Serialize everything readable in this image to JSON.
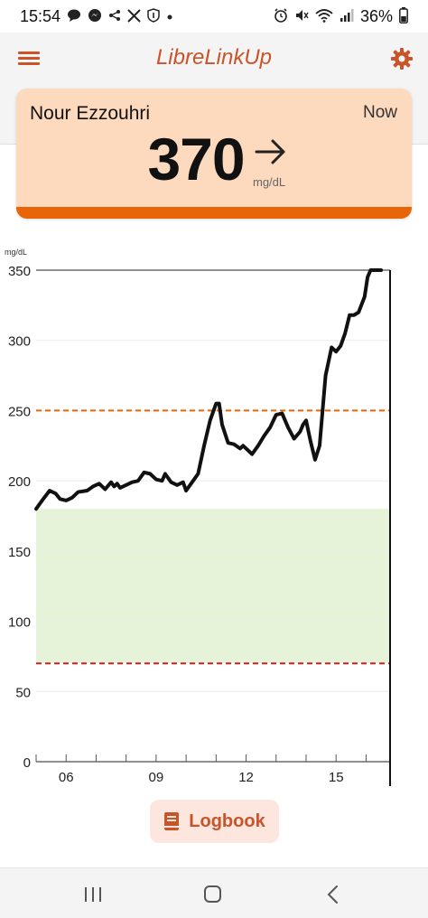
{
  "status_bar": {
    "time": "15:54",
    "battery": "36%",
    "left_icons": [
      "chat-icon",
      "messenger-icon",
      "share-icon",
      "x-icon",
      "notification-badge-icon",
      "dot-icon"
    ],
    "right_icons": [
      "alarm-icon",
      "mute-icon",
      "wifi-icon",
      "signal-icon"
    ]
  },
  "header": {
    "title": "LibreLinkUp"
  },
  "reading": {
    "patient_name": "Nour Ezzouhri",
    "time_label": "Now",
    "value": "370",
    "unit": "mg/dL",
    "trend": "steady",
    "status_color": "#e8650a"
  },
  "chart_data": {
    "type": "line",
    "ylabel": "mg/dL",
    "ylim": [
      0,
      350
    ],
    "yticks": [
      0,
      50,
      100,
      150,
      200,
      250,
      300,
      350
    ],
    "xticks": [
      "06",
      "09",
      "12",
      "15"
    ],
    "xtick_hours": [
      6,
      9,
      12,
      15
    ],
    "xlim_hours": [
      5.0,
      16.8
    ],
    "target_range": [
      70,
      180
    ],
    "high_threshold": 250,
    "low_threshold": 70,
    "series": [
      {
        "x": [
          5.0,
          5.2,
          5.45,
          5.65,
          5.8,
          6.0,
          6.2,
          6.4,
          6.7,
          6.9,
          7.1,
          7.3,
          7.5,
          7.6,
          7.7,
          7.8,
          8.0,
          8.2,
          8.4,
          8.6,
          8.8,
          9.0,
          9.2,
          9.3,
          9.5,
          9.7,
          9.9,
          10.0,
          10.2,
          10.4,
          10.6,
          10.8,
          11.0,
          11.1,
          11.2,
          11.4,
          11.6,
          11.8,
          11.9,
          12.2,
          12.4,
          12.6,
          12.8,
          13.0,
          13.2,
          13.4,
          13.6,
          13.8,
          13.9,
          14.0,
          14.15,
          14.3,
          14.45,
          14.55,
          14.65,
          14.85,
          15.0,
          15.15,
          15.3,
          15.45,
          15.6,
          15.75,
          15.95,
          16.05,
          16.15,
          16.3,
          16.5
        ],
        "y": [
          180,
          186,
          193,
          191,
          187,
          186,
          188,
          192,
          193,
          196,
          198,
          194,
          199,
          196,
          198,
          195,
          197,
          199,
          200,
          206,
          205,
          201,
          200,
          205,
          199,
          197,
          199,
          193,
          199,
          205,
          225,
          243,
          255,
          255,
          240,
          227,
          226,
          223,
          225,
          219,
          225,
          232,
          238,
          247,
          248,
          238,
          230,
          235,
          240,
          243,
          228,
          215,
          225,
          250,
          275,
          295,
          292,
          296,
          305,
          318,
          318,
          320,
          331,
          345,
          350,
          350,
          350
        ]
      }
    ],
    "line_color": "#111111",
    "target_fill": "#e6f3d8",
    "high_color": "#e8650a",
    "low_color": "#cc2222"
  },
  "logbook": {
    "label": "Logbook"
  },
  "nav": {
    "icons": [
      "recent-apps-icon",
      "home-icon",
      "back-icon"
    ]
  }
}
